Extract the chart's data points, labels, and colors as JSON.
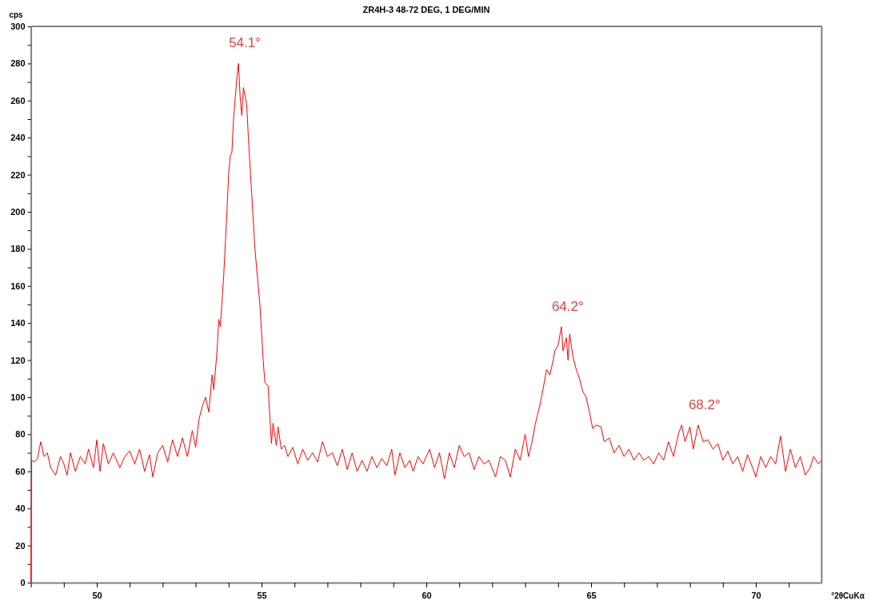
{
  "chart_data": {
    "type": "line",
    "title": "ZR4H-3 48-72 DEG, 1 DEG/MIN",
    "xlabel": "°2θCuKα",
    "ylabel": "cps",
    "xlim": [
      48,
      72
    ],
    "xticks": [
      {
        "value": 48,
        "label": null
      },
      {
        "value": 49,
        "label": null
      },
      50,
      {
        "value": 51,
        "label": null
      },
      {
        "value": 52,
        "label": null
      },
      {
        "value": 53,
        "label": null
      },
      {
        "value": 54,
        "label": null
      },
      55,
      {
        "value": 56,
        "label": null
      },
      {
        "value": 57,
        "label": null
      },
      {
        "value": 58,
        "label": null
      },
      {
        "value": 59,
        "label": null
      },
      60,
      {
        "value": 61,
        "label": null
      },
      {
        "value": 62,
        "label": null
      },
      {
        "value": 63,
        "label": null
      },
      {
        "value": 64,
        "label": null
      },
      65,
      {
        "value": 66,
        "label": null
      },
      {
        "value": 67,
        "label": null
      },
      {
        "value": 68,
        "label": null
      },
      {
        "value": 69,
        "label": null
      },
      70,
      {
        "value": 71,
        "label": null
      }
    ],
    "ylim": [
      0,
      300
    ],
    "yticks": [
      0,
      {
        "value": 10,
        "label": null
      },
      20,
      {
        "value": 30,
        "label": null
      },
      40,
      {
        "value": 50,
        "label": null
      },
      60,
      {
        "value": 70,
        "label": null
      },
      80,
      {
        "value": 90,
        "label": null
      },
      100,
      {
        "value": 110,
        "label": null
      },
      120,
      {
        "value": 130,
        "label": null
      },
      140,
      {
        "value": 150,
        "label": null
      },
      160,
      {
        "value": 170,
        "label": null
      },
      180,
      {
        "value": 190,
        "label": null
      },
      200,
      {
        "value": 210,
        "label": null
      },
      220,
      {
        "value": 230,
        "label": null
      },
      240,
      {
        "value": 250,
        "label": null
      },
      260,
      {
        "value": 270,
        "label": null
      },
      280,
      {
        "value": 290,
        "label": null
      },
      300
    ],
    "grid": false,
    "marker": "none",
    "line_style": "solid",
    "annotations": [
      {
        "text": "54.1°",
        "x": 54.3,
        "y": 280
      },
      {
        "text": "64.2°",
        "x": 64.1,
        "y": 138
      },
      {
        "text": "68.2°",
        "x": 68.25,
        "y": 85
      }
    ],
    "series": [
      {
        "color": "#ff0000",
        "x": [
          48.0,
          48.02,
          48.1,
          48.2,
          48.3,
          48.4,
          48.5,
          48.6,
          48.75,
          48.9,
          49.0,
          49.1,
          49.2,
          49.35,
          49.5,
          49.65,
          49.75,
          49.9,
          50.0,
          50.1,
          50.2,
          50.35,
          50.5,
          50.6,
          50.7,
          50.85,
          51.0,
          51.15,
          51.3,
          51.45,
          51.6,
          51.7,
          51.85,
          52.0,
          52.15,
          52.3,
          52.45,
          52.6,
          52.75,
          52.9,
          53.0,
          53.1,
          53.2,
          53.3,
          53.4,
          53.5,
          53.55,
          53.65,
          53.7,
          53.75,
          53.85,
          53.95,
          54.0,
          54.05,
          54.1,
          54.15,
          54.25,
          54.3,
          54.35,
          54.4,
          54.45,
          54.55,
          54.6,
          54.7,
          54.8,
          54.9,
          54.95,
          55.05,
          55.1,
          55.2,
          55.25,
          55.3,
          55.35,
          55.45,
          55.5,
          55.6,
          55.7,
          55.8,
          55.95,
          56.1,
          56.25,
          56.4,
          56.55,
          56.7,
          56.85,
          57.0,
          57.15,
          57.3,
          57.45,
          57.6,
          57.75,
          57.9,
          58.05,
          58.2,
          58.35,
          58.5,
          58.65,
          58.8,
          58.95,
          59.05,
          59.2,
          59.35,
          59.5,
          59.6,
          59.75,
          59.9,
          60.1,
          60.25,
          60.4,
          60.55,
          60.7,
          60.85,
          61.0,
          61.15,
          61.3,
          61.45,
          61.6,
          61.75,
          61.9,
          62.1,
          62.25,
          62.4,
          62.55,
          62.7,
          62.85,
          63.0,
          63.1,
          63.2,
          63.3,
          63.45,
          63.55,
          63.65,
          63.75,
          63.85,
          63.9,
          64.0,
          64.1,
          64.15,
          64.25,
          64.3,
          64.35,
          64.45,
          64.55,
          64.65,
          64.75,
          64.85,
          64.95,
          65.05,
          65.15,
          65.3,
          65.4,
          65.55,
          65.7,
          65.85,
          66.0,
          66.15,
          66.3,
          66.45,
          66.6,
          66.75,
          66.9,
          67.05,
          67.2,
          67.35,
          67.5,
          67.65,
          67.75,
          67.85,
          68.0,
          68.1,
          68.25,
          68.4,
          68.55,
          68.7,
          68.85,
          69.0,
          69.15,
          69.3,
          69.45,
          69.6,
          69.75,
          69.9,
          70.0,
          70.15,
          70.3,
          70.45,
          70.6,
          70.75,
          70.9,
          71.05,
          71.2,
          71.35,
          71.5,
          71.65,
          71.75,
          71.9,
          72.0
        ],
        "values": [
          0,
          66,
          65,
          67,
          76,
          68,
          70,
          62,
          58,
          68,
          64,
          58,
          70,
          60,
          68,
          64,
          72,
          62,
          77,
          60,
          75,
          64,
          70,
          66,
          62,
          68,
          71,
          64,
          72,
          60,
          69,
          57,
          70,
          74,
          65,
          77,
          68,
          78,
          68,
          82,
          73,
          88,
          95,
          100,
          92,
          112,
          104,
          125,
          142,
          138,
          165,
          200,
          220,
          230,
          232,
          250,
          272,
          280,
          262,
          252,
          267,
          258,
          240,
          210,
          180,
          160,
          150,
          120,
          108,
          106,
          90,
          75,
          86,
          74,
          84,
          72,
          74,
          68,
          73,
          64,
          72,
          66,
          70,
          65,
          76,
          68,
          70,
          63,
          72,
          61,
          70,
          60,
          66,
          60,
          68,
          62,
          67,
          63,
          72,
          58,
          70,
          62,
          66,
          60,
          68,
          64,
          72,
          62,
          70,
          56,
          70,
          62,
          74,
          68,
          70,
          61,
          68,
          64,
          66,
          57,
          68,
          66,
          57,
          72,
          66,
          80,
          68,
          75,
          85,
          96,
          105,
          115,
          112,
          120,
          125,
          128,
          138,
          125,
          132,
          120,
          134,
          122,
          115,
          110,
          103,
          100,
          92,
          83,
          85,
          84,
          76,
          78,
          70,
          74,
          68,
          72,
          66,
          70,
          66,
          68,
          64,
          70,
          66,
          76,
          68,
          80,
          85,
          76,
          84,
          72,
          85,
          76,
          77,
          72,
          75,
          66,
          71,
          64,
          68,
          60,
          69,
          62,
          57,
          68,
          62,
          68,
          64,
          79,
          60,
          72,
          62,
          68,
          58,
          62,
          68,
          64,
          66
        ]
      }
    ]
  }
}
